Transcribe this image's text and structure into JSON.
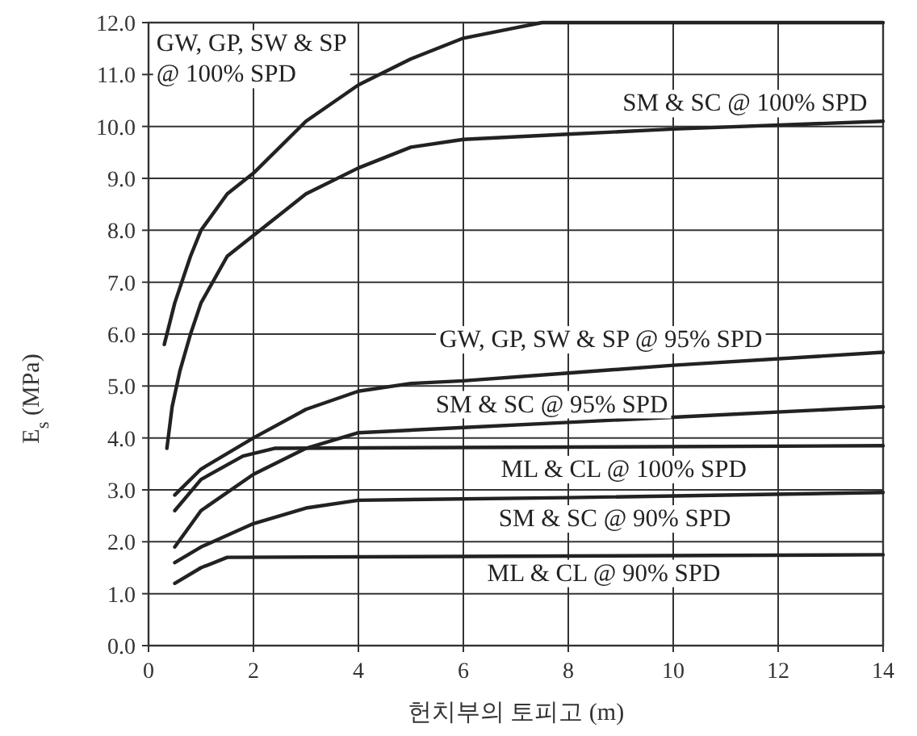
{
  "chart_data": {
    "type": "line",
    "xlabel": "헌치부의 토피고 (m)",
    "ylabel": "E$_{s}$ (MPa)",
    "xlim": [
      0,
      14
    ],
    "xticks": [
      0,
      2,
      4,
      6,
      8,
      10,
      12,
      14
    ],
    "ylim": [
      0,
      12
    ],
    "yticks": [
      {
        "value": 0,
        "label": "0.0"
      },
      {
        "value": 1,
        "label": "1.0"
      },
      {
        "value": 2,
        "label": "2.0"
      },
      {
        "value": 3,
        "label": "3.0"
      },
      {
        "value": 4,
        "label": "4.0"
      },
      {
        "value": 5,
        "label": "5.0"
      },
      {
        "value": 6,
        "label": "6.0"
      },
      {
        "value": 7,
        "label": "7.0"
      },
      {
        "value": 8,
        "label": "8.0"
      },
      {
        "value": 9,
        "label": "9.0"
      },
      {
        "value": 10,
        "label": "10.0"
      },
      {
        "value": 11,
        "label": "11.0"
      },
      {
        "value": 12,
        "label": "12.0"
      }
    ],
    "grid": true,
    "series": [
      {
        "name": "GW, GP, SW & SP @ 100% SPD",
        "color": "#222222",
        "x": [
          0.3,
          0.5,
          0.8,
          1,
          1.5,
          2,
          3,
          4,
          5,
          6,
          7,
          7.5,
          14
        ],
        "values": [
          5.8,
          6.6,
          7.5,
          8.0,
          8.7,
          9.1,
          10.1,
          10.8,
          11.3,
          11.7,
          11.9,
          12.0,
          12.0
        ]
      },
      {
        "name": "SM & SC @ 100% SPD",
        "color": "#222222",
        "x": [
          0.35,
          0.45,
          0.6,
          0.8,
          1,
          1.5,
          2,
          3,
          4,
          5,
          6,
          8,
          10,
          14
        ],
        "values": [
          3.8,
          4.6,
          5.3,
          6.0,
          6.6,
          7.5,
          7.9,
          8.7,
          9.2,
          9.6,
          9.75,
          9.85,
          9.95,
          10.1
        ]
      },
      {
        "name": "GW, GP, SW & SP @ 95% SPD",
        "color": "#222222",
        "x": [
          0.5,
          1,
          2,
          3,
          4,
          5,
          6,
          8,
          10,
          14
        ],
        "values": [
          2.9,
          3.4,
          4.0,
          4.55,
          4.9,
          5.05,
          5.1,
          5.25,
          5.4,
          5.65
        ]
      },
      {
        "name": "SM & SC @ 95% SPD",
        "color": "#222222",
        "x": [
          0.5,
          1,
          2,
          3,
          4,
          6,
          8,
          10,
          14
        ],
        "values": [
          1.9,
          2.6,
          3.3,
          3.8,
          4.1,
          4.2,
          4.3,
          4.4,
          4.6
        ]
      },
      {
        "name": "ML & CL @ 100% SPD",
        "color": "#222222",
        "x": [
          0.5,
          1,
          1.8,
          2.4,
          14
        ],
        "values": [
          2.6,
          3.2,
          3.65,
          3.8,
          3.85
        ]
      },
      {
        "name": "SM & SC @ 90% SPD",
        "color": "#222222",
        "x": [
          0.5,
          1,
          2,
          3,
          4,
          8,
          14
        ],
        "values": [
          1.6,
          1.9,
          2.35,
          2.65,
          2.8,
          2.85,
          2.95
        ]
      },
      {
        "name": "ML & CL @ 90% SPD",
        "color": "#222222",
        "x": [
          0.5,
          1,
          1.5,
          14
        ],
        "values": [
          1.2,
          1.5,
          1.7,
          1.75
        ]
      }
    ]
  }
}
